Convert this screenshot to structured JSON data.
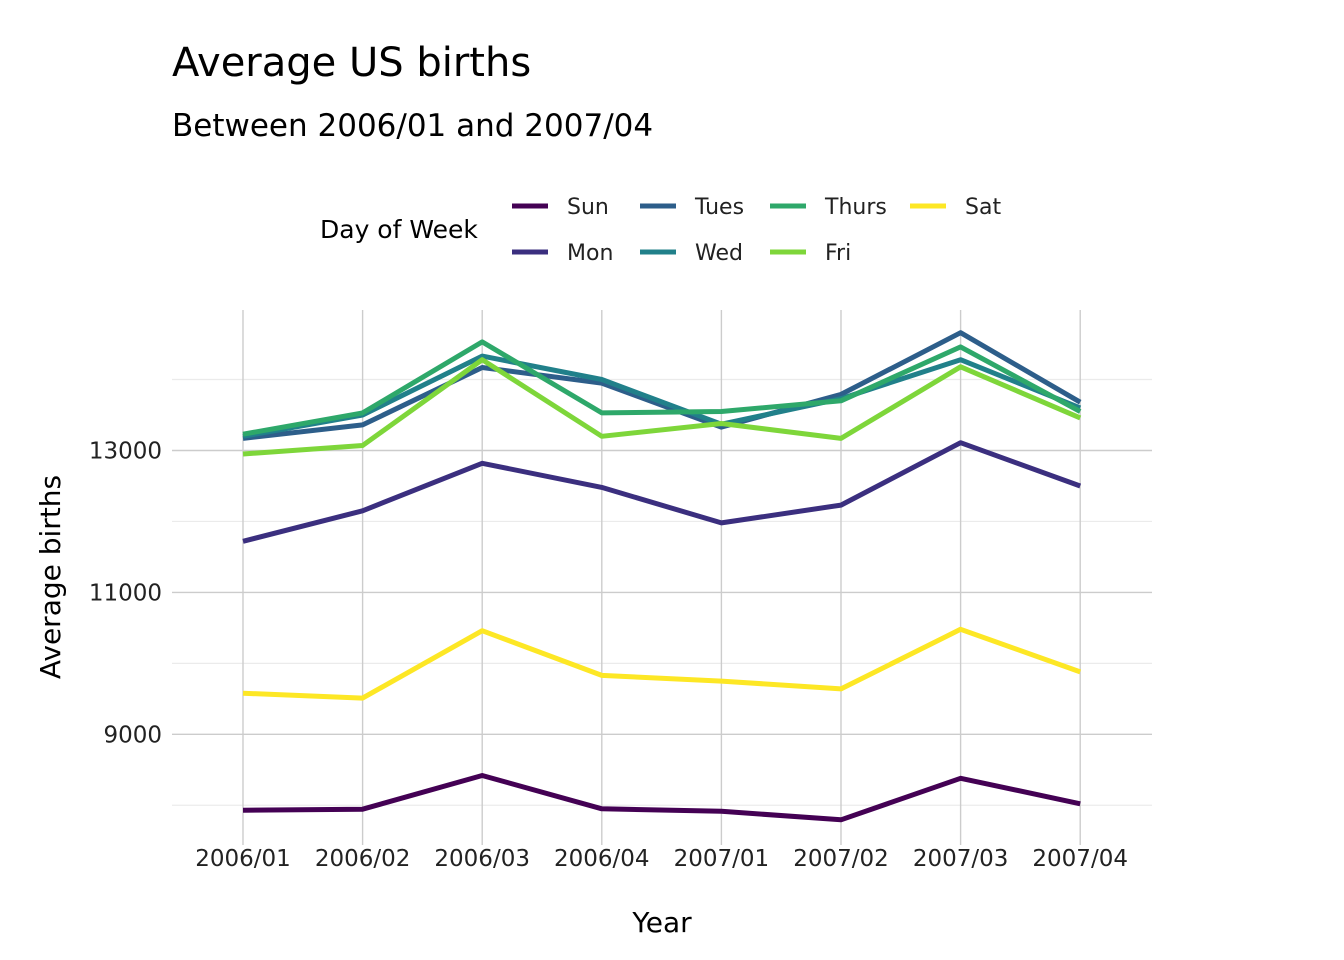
{
  "chart_data": {
    "type": "line",
    "title": "Average US births",
    "subtitle": "Between 2006/01 and 2007/04",
    "xlabel": "Year",
    "ylabel": "Average births",
    "categories": [
      "2006/01",
      "2006/02",
      "2006/03",
      "2006/04",
      "2007/01",
      "2007/02",
      "2007/03",
      "2007/04"
    ],
    "yticks": [
      9000,
      11000,
      13000
    ],
    "ylim": [
      7440,
      14980
    ],
    "grid": true,
    "legend": {
      "title": "Day of Week",
      "placement": "top"
    },
    "series": [
      {
        "name": "Sun",
        "color": "#440154",
        "values": [
          7930,
          7945,
          8420,
          7950,
          7915,
          7795,
          8380,
          8020
        ]
      },
      {
        "name": "Mon",
        "color": "#3B2F7F",
        "values": [
          11720,
          12150,
          12820,
          12480,
          11980,
          12230,
          13110,
          12500
        ]
      },
      {
        "name": "Tues",
        "color": "#2D5E8A",
        "values": [
          13170,
          13360,
          14170,
          13950,
          13330,
          13790,
          14660,
          13680
        ]
      },
      {
        "name": "Wed",
        "color": "#21808A",
        "values": [
          13200,
          13500,
          14330,
          14000,
          13370,
          13730,
          14280,
          13600
        ]
      },
      {
        "name": "Thurs",
        "color": "#2EA86A",
        "values": [
          13230,
          13530,
          14530,
          13530,
          13550,
          13700,
          14460,
          13550
        ]
      },
      {
        "name": "Fri",
        "color": "#7ED63A",
        "values": [
          12950,
          13070,
          14280,
          13200,
          13380,
          13170,
          14180,
          13460
        ]
      },
      {
        "name": "Sat",
        "color": "#FDE725",
        "values": [
          9580,
          9510,
          10460,
          9830,
          9750,
          9640,
          10480,
          9880
        ]
      }
    ]
  }
}
